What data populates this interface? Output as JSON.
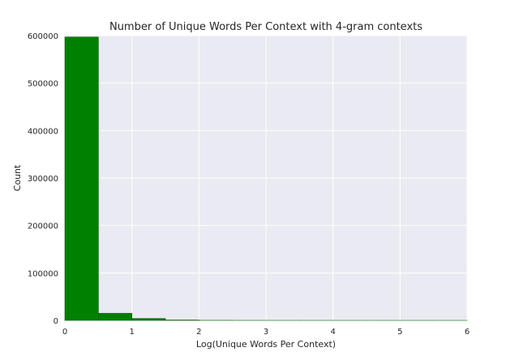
{
  "chart_data": {
    "type": "bar",
    "title": "Number of Unique Words Per Context with 4-gram contexts",
    "xlabel": "Log(Unique Words Per Context)",
    "ylabel": "Count",
    "xlim": [
      0,
      6
    ],
    "ylim": [
      0,
      600000
    ],
    "xticks": [
      0,
      1,
      2,
      3,
      4,
      5,
      6
    ],
    "yticks": [
      0,
      100000,
      200000,
      300000,
      400000,
      500000,
      600000
    ],
    "grid": true,
    "bins": [
      {
        "x0": 0.0,
        "x1": 0.5,
        "value": 597000
      },
      {
        "x0": 0.5,
        "x1": 1.0,
        "value": 15000
      },
      {
        "x0": 1.0,
        "x1": 1.5,
        "value": 4000
      },
      {
        "x0": 1.5,
        "x1": 2.0,
        "value": 800
      },
      {
        "x0": 2.0,
        "x1": 2.5,
        "value": 150
      },
      {
        "x0": 2.5,
        "x1": 3.0,
        "value": 30
      },
      {
        "x0": 3.0,
        "x1": 3.5,
        "value": 5
      },
      {
        "x0": 3.5,
        "x1": 4.0,
        "value": 2
      },
      {
        "x0": 4.0,
        "x1": 4.5,
        "value": 1
      },
      {
        "x0": 4.5,
        "x1": 5.0,
        "value": 1
      },
      {
        "x0": 5.0,
        "x1": 5.5,
        "value": 1
      },
      {
        "x0": 5.5,
        "x1": 6.0,
        "value": 1
      }
    ],
    "colors": {
      "bar": "#008000",
      "bar_edge": "#005a00",
      "plot_bg": "#eaeaf2",
      "grid": "#ffffff"
    }
  }
}
